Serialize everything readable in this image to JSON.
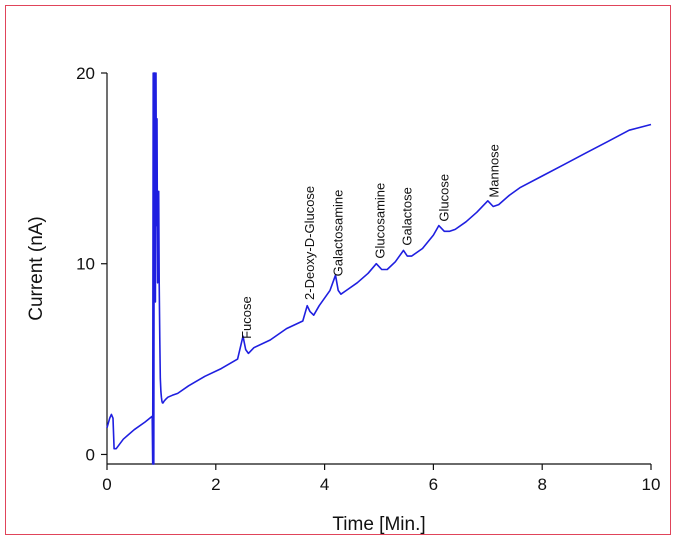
{
  "chart_data": {
    "type": "line",
    "title": "",
    "xlabel": "Time [Min.]",
    "ylabel": "Current (nA)",
    "xlim": [
      0,
      10
    ],
    "ylim": [
      -0.5,
      20
    ],
    "xticks": [
      0,
      2,
      4,
      6,
      8,
      10
    ],
    "yticks": [
      0,
      10,
      20
    ],
    "grid": false,
    "line_color": "#1f1fe0",
    "frame_color": "#e0445a",
    "series": [
      {
        "x": [
          0.0,
          0.05,
          0.08,
          0.11,
          0.13,
          0.17,
          0.3,
          0.5,
          0.7,
          0.83,
          0.84,
          0.85,
          0.86,
          0.87,
          0.88,
          0.89,
          0.9,
          0.91,
          0.92,
          0.93,
          0.94,
          0.95,
          0.96,
          0.97,
          0.98,
          0.99,
          1.0,
          1.01,
          1.02,
          1.03,
          1.05,
          1.08,
          1.12,
          1.2,
          1.3,
          1.5,
          1.8,
          2.1,
          2.4,
          2.5,
          2.55,
          2.6,
          2.7,
          3.0,
          3.3,
          3.6,
          3.68,
          3.73,
          3.8,
          3.9,
          4.1,
          4.2,
          4.25,
          4.3,
          4.4,
          4.6,
          4.8,
          4.95,
          5.05,
          5.15,
          5.3,
          5.45,
          5.52,
          5.6,
          5.8,
          6.0,
          6.1,
          6.2,
          6.3,
          6.4,
          6.6,
          6.8,
          7.0,
          7.1,
          7.2,
          7.4,
          7.6,
          8.0,
          8.4,
          8.8,
          9.2,
          9.6,
          10.0
        ],
        "y": [
          1.4,
          1.9,
          2.1,
          1.9,
          0.3,
          0.3,
          0.8,
          1.3,
          1.7,
          2.0,
          -0.5,
          20.0,
          -0.5,
          20.0,
          20.0,
          8.0,
          20.0,
          12.0,
          17.6,
          9.0,
          11.5,
          13.8,
          9.0,
          6.0,
          4.0,
          3.3,
          3.0,
          2.8,
          2.7,
          2.7,
          2.8,
          2.9,
          3.0,
          3.1,
          3.2,
          3.6,
          4.1,
          4.5,
          5.0,
          6.2,
          5.5,
          5.3,
          5.6,
          6.0,
          6.6,
          7.0,
          7.8,
          7.5,
          7.3,
          7.8,
          8.6,
          9.4,
          8.6,
          8.4,
          8.6,
          9.0,
          9.5,
          10.0,
          9.7,
          9.7,
          10.1,
          10.7,
          10.4,
          10.4,
          10.8,
          11.5,
          12.0,
          11.7,
          11.7,
          11.8,
          12.2,
          12.7,
          13.3,
          13.0,
          13.1,
          13.6,
          14.0,
          14.6,
          15.2,
          15.8,
          16.4,
          17.0,
          17.3
        ]
      }
    ],
    "annotations": [
      {
        "text": "Fucose",
        "x": 2.57
      },
      {
        "text": "2-Deoxy-D-Glucose",
        "x": 3.73
      },
      {
        "text": "Galactosamine",
        "x": 4.26
      },
      {
        "text": "Glucosamine",
        "x": 5.03
      },
      {
        "text": "Galactose",
        "x": 5.52
      },
      {
        "text": "Glucose",
        "x": 6.2
      },
      {
        "text": "Mannose",
        "x": 7.12
      }
    ]
  }
}
